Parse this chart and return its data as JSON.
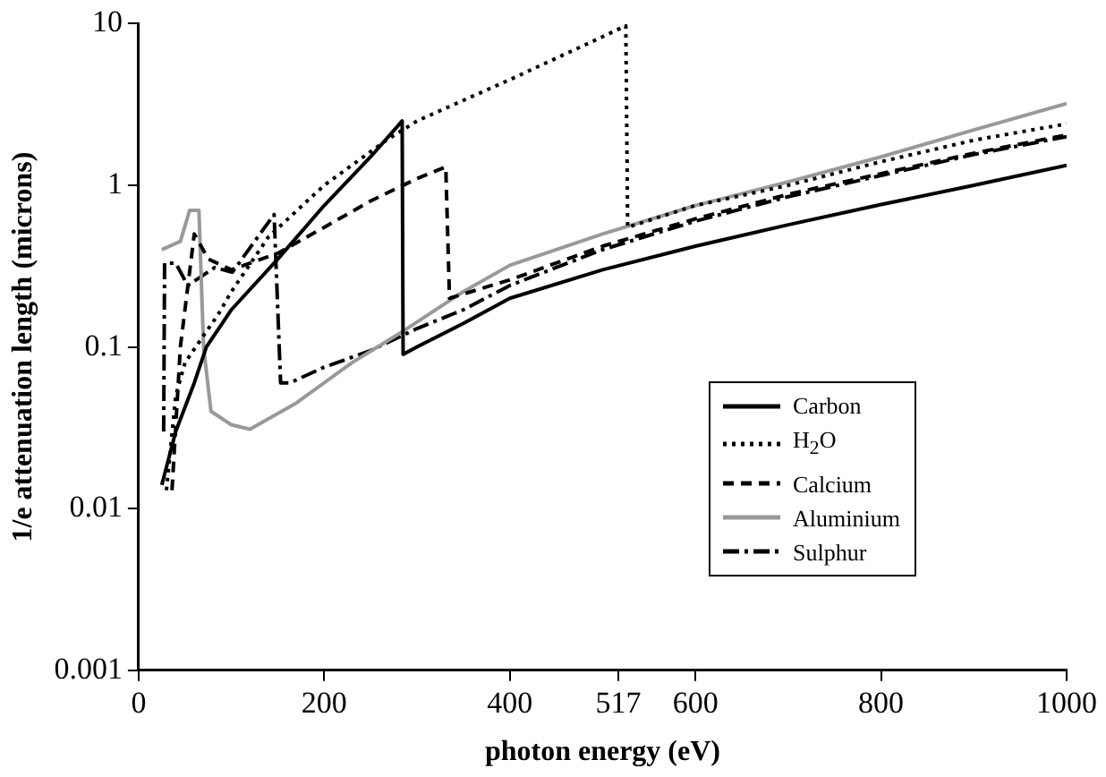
{
  "chart_data": {
    "type": "line",
    "xlabel": "photon energy (eV)",
    "ylabel": "1/e attenuation length (microns)",
    "xlim": [
      0,
      1000
    ],
    "xticks": [
      0,
      200,
      400,
      {
        "value": 517,
        "label": "517"
      },
      600,
      800,
      1000
    ],
    "ylim": [
      0.001,
      10
    ],
    "yticks": [
      0.001,
      0.01,
      0.1,
      1,
      10
    ],
    "log": "y",
    "grid": false,
    "legend": "right",
    "marker": "none",
    "series": [
      {
        "name": "Carbon",
        "color": "#000000",
        "line_style": "solid",
        "x": [
          25,
          40,
          60,
          73,
          100,
          150,
          200,
          250,
          284,
          285,
          300,
          350,
          400,
          500,
          600,
          700,
          800,
          900,
          1000
        ],
        "values": [
          0.014,
          0.03,
          0.06,
          0.1,
          0.17,
          0.35,
          0.75,
          1.5,
          2.5,
          0.09,
          0.1,
          0.14,
          0.2,
          0.3,
          0.42,
          0.57,
          0.76,
          1.0,
          1.33
        ]
      },
      {
        "name": "H$_{2}$O",
        "color": "#000000",
        "line_style": "dotted",
        "x": [
          30,
          40,
          50,
          86,
          100,
          140,
          200,
          267,
          300,
          400,
          500,
          525,
          527,
          600,
          700,
          800,
          900,
          1000
        ],
        "values": [
          0.013,
          0.05,
          0.08,
          0.16,
          0.22,
          0.48,
          1.0,
          1.9,
          2.5,
          4.5,
          8.3,
          9.7,
          0.55,
          0.75,
          1.0,
          1.4,
          1.9,
          2.4
        ]
      },
      {
        "name": "Calcium",
        "color": "#000000",
        "line_style": "dashed",
        "x": [
          36,
          45,
          60,
          75,
          100,
          150,
          200,
          250,
          300,
          331,
          335,
          400,
          500,
          600,
          700,
          800,
          900,
          1000
        ],
        "values": [
          0.013,
          0.1,
          0.5,
          0.35,
          0.3,
          0.38,
          0.55,
          0.8,
          1.1,
          1.3,
          0.2,
          0.26,
          0.42,
          0.62,
          0.88,
          1.18,
          1.58,
          2.05
        ]
      },
      {
        "name": "Aluminium",
        "color": "#999999",
        "line_style": "solid",
        "x": [
          25,
          45,
          55,
          65,
          70,
          78,
          100,
          120,
          170,
          230,
          280,
          350,
          400,
          500,
          600,
          700,
          800,
          900,
          1000
        ],
        "values": [
          0.4,
          0.45,
          0.7,
          0.7,
          0.1,
          0.04,
          0.033,
          0.031,
          0.045,
          0.08,
          0.12,
          0.22,
          0.32,
          0.5,
          0.75,
          1.05,
          1.5,
          2.2,
          3.2
        ]
      },
      {
        "name": "Sulphur",
        "color": "#000000",
        "line_style": "dashdot",
        "x": [
          27,
          28,
          40,
          53,
          82,
          101,
          146,
          153,
          163,
          200,
          250,
          300,
          350,
          400,
          500,
          600,
          700,
          800,
          900,
          1000
        ],
        "values": [
          0.03,
          0.33,
          0.33,
          0.24,
          0.31,
          0.29,
          0.66,
          0.06,
          0.06,
          0.075,
          0.095,
          0.13,
          0.17,
          0.24,
          0.4,
          0.6,
          0.85,
          1.15,
          1.55,
          2.0
        ]
      }
    ]
  }
}
